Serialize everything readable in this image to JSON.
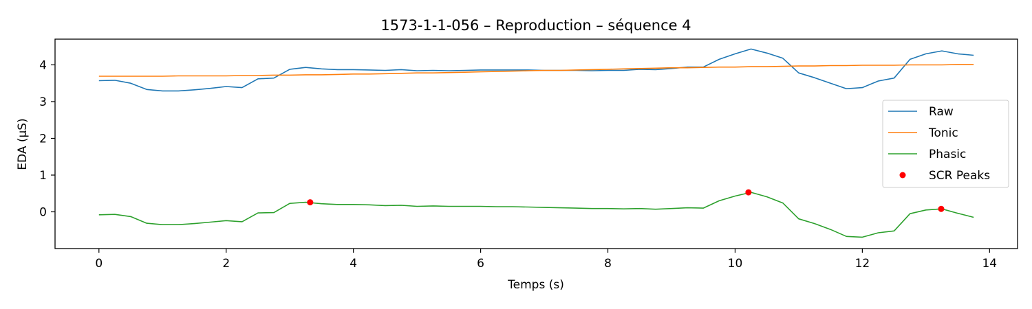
{
  "chart_data": {
    "type": "line",
    "title": "1573-1-1-056 – Reproduction – séquence 4",
    "xlabel": "Temps (s)",
    "ylabel": "EDA (µS)",
    "xlim": [
      -0.69,
      14.44
    ],
    "ylim": [
      -1.0,
      4.7
    ],
    "xticks": [
      0,
      2,
      4,
      6,
      8,
      10,
      12,
      14
    ],
    "yticks": [
      0,
      1,
      2,
      3,
      4
    ],
    "grid": false,
    "legend_position": "center-right",
    "x": [
      0.0,
      0.25,
      0.5,
      0.75,
      1.0,
      1.25,
      1.5,
      1.75,
      2.0,
      2.25,
      2.5,
      2.75,
      3.0,
      3.25,
      3.5,
      3.75,
      4.0,
      4.25,
      4.5,
      4.75,
      5.0,
      5.25,
      5.5,
      5.75,
      6.0,
      6.25,
      6.5,
      6.75,
      7.0,
      7.25,
      7.5,
      7.75,
      8.0,
      8.25,
      8.5,
      8.75,
      9.0,
      9.25,
      9.5,
      9.75,
      10.0,
      10.25,
      10.5,
      10.75,
      11.0,
      11.25,
      11.5,
      11.75,
      12.0,
      12.25,
      12.5,
      12.75,
      13.0,
      13.25,
      13.5,
      13.75
    ],
    "series": [
      {
        "name": "Raw",
        "kind": "line",
        "color": "#1f77b4",
        "values": [
          3.57,
          3.58,
          3.5,
          3.33,
          3.29,
          3.29,
          3.32,
          3.36,
          3.41,
          3.38,
          3.62,
          3.64,
          3.88,
          3.93,
          3.89,
          3.87,
          3.87,
          3.86,
          3.85,
          3.87,
          3.84,
          3.85,
          3.84,
          3.85,
          3.86,
          3.86,
          3.86,
          3.86,
          3.85,
          3.85,
          3.85,
          3.84,
          3.85,
          3.85,
          3.88,
          3.87,
          3.9,
          3.94,
          3.94,
          4.15,
          4.3,
          4.43,
          4.32,
          4.18,
          3.78,
          3.65,
          3.5,
          3.35,
          3.38,
          3.56,
          3.64,
          4.15,
          4.3,
          4.38,
          4.3,
          4.26
        ]
      },
      {
        "name": "Tonic",
        "kind": "line",
        "color": "#ff7f0e",
        "values": [
          3.69,
          3.69,
          3.69,
          3.69,
          3.69,
          3.7,
          3.7,
          3.7,
          3.7,
          3.71,
          3.71,
          3.72,
          3.72,
          3.73,
          3.73,
          3.74,
          3.75,
          3.75,
          3.76,
          3.77,
          3.78,
          3.78,
          3.79,
          3.8,
          3.81,
          3.82,
          3.83,
          3.84,
          3.85,
          3.85,
          3.86,
          3.87,
          3.88,
          3.89,
          3.9,
          3.91,
          3.92,
          3.92,
          3.93,
          3.94,
          3.94,
          3.95,
          3.95,
          3.96,
          3.97,
          3.97,
          3.98,
          3.98,
          3.99,
          3.99,
          3.99,
          4.0,
          4.0,
          4.0,
          4.01,
          4.01
        ]
      },
      {
        "name": "Phasic",
        "kind": "line",
        "color": "#2ca02c",
        "values": [
          -0.08,
          -0.07,
          -0.13,
          -0.31,
          -0.35,
          -0.35,
          -0.32,
          -0.28,
          -0.24,
          -0.27,
          -0.03,
          -0.02,
          0.23,
          0.26,
          0.22,
          0.2,
          0.2,
          0.19,
          0.17,
          0.18,
          0.15,
          0.16,
          0.15,
          0.15,
          0.15,
          0.14,
          0.14,
          0.13,
          0.12,
          0.11,
          0.1,
          0.09,
          0.09,
          0.08,
          0.09,
          0.07,
          0.09,
          0.11,
          0.1,
          0.3,
          0.43,
          0.53,
          0.41,
          0.24,
          -0.19,
          -0.32,
          -0.48,
          -0.67,
          -0.69,
          -0.57,
          -0.52,
          -0.05,
          0.05,
          0.08,
          -0.04,
          -0.15
        ]
      }
    ],
    "peaks": {
      "name": "SCR Peaks",
      "color": "#ff0000",
      "points": [
        {
          "x": 3.32,
          "y": 0.26
        },
        {
          "x": 10.21,
          "y": 0.53
        },
        {
          "x": 13.24,
          "y": 0.08
        }
      ]
    }
  }
}
